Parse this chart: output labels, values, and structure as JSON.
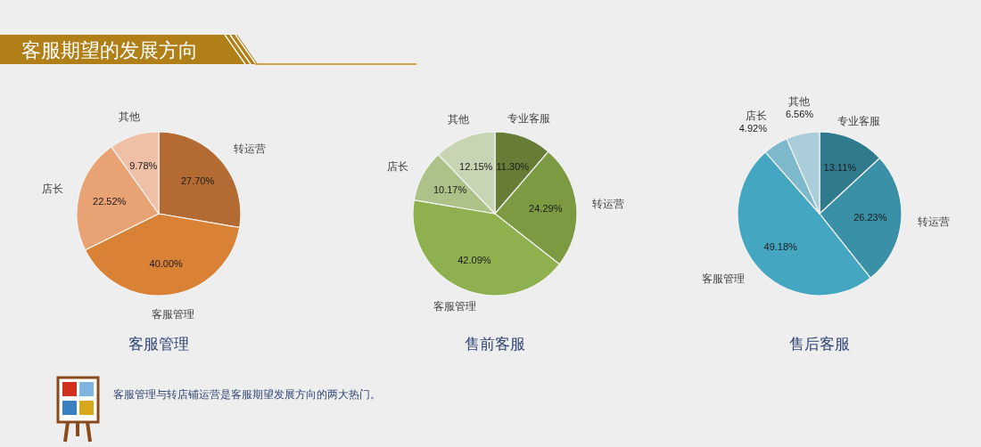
{
  "chart_data": [
    {
      "type": "other",
      "title": "客服期望的发展方向"
    },
    {
      "type": "pie",
      "title": "客服管理",
      "categories": [
        "转运营",
        "客服管理",
        "店长",
        "其他"
      ],
      "values": [
        27.7,
        40.0,
        22.52,
        9.78
      ],
      "colors": [
        "#b36b33",
        "#d98236",
        "#e9a273",
        "#efbfa6"
      ],
      "value_labels": [
        "27.70%",
        "40.00%",
        "22.52%",
        "9.78%"
      ]
    },
    {
      "type": "pie",
      "title": "售前客服",
      "categories": [
        "专业客服",
        "转运营",
        "客服管理",
        "店长",
        "其他"
      ],
      "values": [
        11.3,
        24.29,
        42.09,
        10.17,
        12.15
      ],
      "colors": [
        "#677d36",
        "#7b9a41",
        "#8fb04f",
        "#adc288",
        "#c8d5b5"
      ],
      "value_labels": [
        "11.30%",
        "24.29%",
        "42.09%",
        "10.17%",
        "12.15%"
      ]
    },
    {
      "type": "pie",
      "title": "售后客服",
      "categories": [
        "专业客服",
        "转运营",
        "客服管理",
        "店长",
        "其他"
      ],
      "values": [
        13.11,
        26.23,
        49.18,
        4.92,
        6.56
      ],
      "colors": [
        "#2f7b8d",
        "#3a90a6",
        "#45a6c1",
        "#7eb8cb",
        "#abcdda"
      ],
      "value_labels": [
        "13.11%",
        "26.23%",
        "49.18%",
        "4.92%",
        "6.56%"
      ]
    },
    {
      "type": "other",
      "annotations": [
        "客服管理与转店铺运营是客服期望发展方向的两大热门。"
      ]
    }
  ]
}
